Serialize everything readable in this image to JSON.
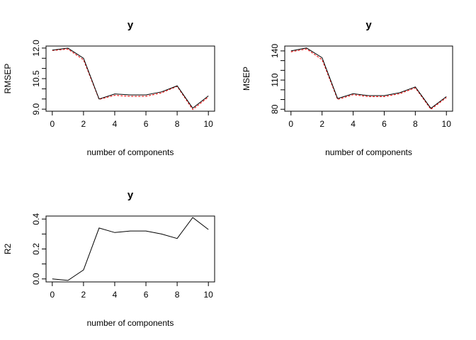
{
  "chart_data": [
    {
      "type": "line",
      "title": "y",
      "xlabel": "number of components",
      "ylabel": "RMSEP",
      "x": [
        0,
        1,
        2,
        3,
        4,
        5,
        6,
        7,
        8,
        9,
        10
      ],
      "xlim": [
        0,
        10
      ],
      "ylim": [
        8.9,
        12.1
      ],
      "xticks": [
        "0",
        "2",
        "4",
        "6",
        "8",
        "10"
      ],
      "yticks": [
        "9.0",
        "10.5",
        "12.0"
      ],
      "y_tick_values": [
        9.0,
        10.5,
        12.0
      ],
      "y_minor_ticks": [
        9.5,
        10.0,
        11.0,
        11.5
      ],
      "series": [
        {
          "values": [
            11.9,
            12.0,
            11.5,
            9.5,
            9.75,
            9.7,
            9.7,
            9.85,
            10.15,
            9.05,
            9.65
          ],
          "color": "#000000",
          "style": "solid"
        },
        {
          "values": [
            11.88,
            11.95,
            11.42,
            9.48,
            9.68,
            9.63,
            9.63,
            9.8,
            10.12,
            8.98,
            9.6
          ],
          "color": "#ff0000",
          "style": "dashed"
        }
      ],
      "grid": false
    },
    {
      "type": "line",
      "title": "y",
      "xlabel": "number of components",
      "ylabel": "MSEP",
      "x": [
        0,
        1,
        2,
        3,
        4,
        5,
        6,
        7,
        8,
        9,
        10
      ],
      "xlim": [
        0,
        10
      ],
      "ylim": [
        78,
        145
      ],
      "xticks": [
        "0",
        "2",
        "4",
        "6",
        "8",
        "10"
      ],
      "yticks": [
        "80",
        "110",
        "140"
      ],
      "y_tick_values": [
        80,
        110,
        140
      ],
      "y_minor_ticks": [
        90,
        100,
        120,
        130
      ],
      "series": [
        {
          "values": [
            140,
            143,
            133,
            91,
            96,
            94,
            94,
            97,
            103,
            81,
            93
          ],
          "color": "#000000",
          "style": "solid"
        },
        {
          "values": [
            139,
            142,
            131,
            90,
            95,
            93,
            93,
            96,
            102,
            80,
            92
          ],
          "color": "#ff0000",
          "style": "dashed"
        }
      ],
      "grid": false
    },
    {
      "type": "line",
      "title": "y",
      "xlabel": "number of components",
      "ylabel": "R2",
      "x": [
        0,
        1,
        2,
        3,
        4,
        5,
        6,
        7,
        8,
        9,
        10
      ],
      "xlim": [
        0,
        10
      ],
      "ylim": [
        -0.02,
        0.42
      ],
      "xticks": [
        "0",
        "2",
        "4",
        "6",
        "8",
        "10"
      ],
      "yticks": [
        "0.0",
        "0.2",
        "0.4"
      ],
      "y_tick_values": [
        0.0,
        0.2,
        0.4
      ],
      "y_minor_ticks": [
        0.1,
        0.3
      ],
      "series": [
        {
          "values": [
            0.0,
            -0.01,
            0.06,
            0.34,
            0.31,
            0.32,
            0.32,
            0.3,
            0.27,
            0.41,
            0.33
          ],
          "color": "#000000",
          "style": "solid"
        }
      ],
      "grid": false
    }
  ]
}
